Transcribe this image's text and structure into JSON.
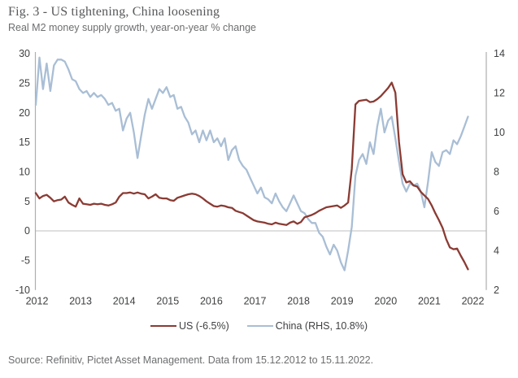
{
  "figure": {
    "title": "Fig. 3 - US tightening, China loosening",
    "subtitle": "Real M2 money supply growth, year-on-year % change",
    "source": "Source: Refinitiv, Pictet Asset Management. Data from 15.12.2012 to 15.11.2022."
  },
  "legend": {
    "us_label": "US (-6.5%)",
    "china_label": "China (RHS, 10.8%)"
  },
  "colors": {
    "us_line": "#8a3b33",
    "china_line": "#a9bed5",
    "axis_line": "#aeaeae",
    "zero_line": "#cccccc",
    "tick_text": "#3f4042"
  },
  "chart_data": {
    "type": "line",
    "title": "Fig. 3 - US tightening, China loosening",
    "subtitle": "Real M2 money supply growth, year-on-year % change",
    "x_unit": "monthly",
    "x_start": "2012-12",
    "x_end": "2022-11",
    "x_tick_labels": [
      "2012",
      "2013",
      "2014",
      "2015",
      "2016",
      "2017",
      "2018",
      "2019",
      "2020",
      "2021",
      "2022"
    ],
    "months_per_tick": 12,
    "grid": "zero-line-only",
    "legend_position": "bottom-center",
    "left_axis": {
      "min": -10,
      "max": 30,
      "ticks": [
        30,
        25,
        20,
        15,
        10,
        5,
        0,
        -5,
        -10
      ]
    },
    "right_axis": {
      "min": 2,
      "max": 14,
      "ticks": [
        14,
        12,
        10,
        8,
        6,
        4,
        2
      ]
    },
    "series": [
      {
        "name": "US (-6.5%)",
        "axis": "left",
        "color": "#8a3b33",
        "last_value": -6.5,
        "values": [
          6.4,
          5.5,
          5.9,
          6.1,
          5.6,
          5.0,
          5.2,
          5.3,
          5.8,
          4.8,
          4.4,
          4.1,
          5.5,
          4.6,
          4.5,
          4.4,
          4.6,
          4.5,
          4.6,
          4.4,
          4.3,
          4.5,
          4.8,
          5.8,
          6.4,
          6.4,
          6.5,
          6.3,
          6.5,
          6.3,
          6.2,
          5.5,
          5.8,
          6.2,
          5.6,
          5.5,
          5.5,
          5.2,
          5.1,
          5.6,
          5.8,
          6.0,
          6.2,
          6.3,
          6.2,
          5.9,
          5.5,
          5.0,
          4.6,
          4.2,
          4.1,
          4.3,
          4.2,
          4.0,
          3.9,
          3.4,
          3.2,
          3.0,
          2.6,
          2.2,
          1.8,
          1.6,
          1.5,
          1.4,
          1.2,
          1.1,
          1.4,
          1.2,
          1.1,
          1.0,
          1.4,
          1.6,
          1.2,
          1.5,
          2.3,
          2.5,
          2.7,
          3.0,
          3.4,
          3.7,
          4.0,
          4.1,
          4.2,
          4.3,
          3.9,
          4.3,
          4.8,
          10.5,
          21.4,
          22.0,
          22.1,
          22.2,
          21.8,
          21.9,
          22.3,
          22.8,
          23.5,
          24.2,
          25.1,
          23.4,
          15.0,
          9.6,
          8.2,
          8.4,
          7.7,
          7.5,
          6.6,
          6.0,
          5.4,
          4.3,
          3.0,
          1.8,
          0.5,
          -1.4,
          -2.8,
          -3.1,
          -3.0,
          -4.2,
          -5.3,
          -6.5
        ]
      },
      {
        "name": "China (RHS, 10.8%)",
        "axis": "right",
        "color": "#a9bed5",
        "last_value": 10.8,
        "values": [
          11.4,
          13.8,
          12.2,
          13.5,
          12.1,
          13.4,
          13.7,
          13.7,
          13.6,
          13.2,
          12.7,
          12.6,
          12.2,
          12.0,
          12.1,
          11.8,
          12.0,
          11.8,
          11.9,
          11.7,
          11.4,
          11.5,
          11.1,
          11.2,
          10.1,
          10.7,
          11.0,
          10.0,
          8.7,
          9.8,
          10.9,
          11.7,
          11.2,
          11.7,
          12.2,
          12.0,
          12.3,
          11.8,
          11.9,
          11.2,
          11.3,
          10.8,
          10.5,
          9.9,
          10.1,
          9.5,
          10.1,
          9.6,
          10.1,
          9.5,
          9.7,
          9.3,
          9.7,
          8.6,
          9.1,
          9.3,
          8.6,
          8.3,
          8.1,
          7.7,
          7.3,
          6.9,
          7.2,
          6.7,
          6.6,
          6.4,
          6.9,
          6.5,
          6.2,
          6.0,
          6.4,
          6.8,
          6.4,
          6.0,
          5.9,
          5.6,
          5.4,
          5.4,
          4.9,
          4.7,
          4.2,
          3.8,
          4.3,
          4.0,
          3.4,
          3.0,
          4.0,
          5.2,
          7.8,
          8.6,
          8.9,
          8.4,
          9.5,
          8.9,
          10.3,
          11.2,
          10.0,
          10.6,
          10.8,
          9.7,
          8.5,
          7.4,
          7.0,
          7.4,
          7.3,
          7.4,
          7.0,
          6.2,
          7.5,
          9.0,
          8.5,
          8.3,
          9.0,
          9.1,
          8.9,
          9.6,
          9.4,
          9.8,
          10.3,
          10.8
        ]
      }
    ]
  }
}
